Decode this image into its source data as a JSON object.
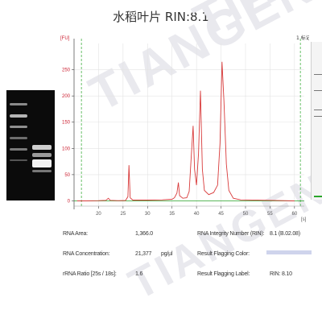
{
  "title": "水稻叶片 RIN:8.1",
  "watermark": "TIANGEN",
  "chart_data": {
    "type": "line",
    "y_unit_label": "[FU]",
    "x_unit_label": "[s]",
    "right_label": "1 标记",
    "xlim": [
      15,
      62
    ],
    "ylim": [
      -10,
      300
    ],
    "x_ticks": [
      20,
      25,
      30,
      35,
      40,
      45,
      50,
      55,
      60
    ],
    "y_ticks": [
      0,
      50,
      100,
      150,
      200,
      250
    ],
    "grid": true,
    "series": [
      {
        "points": [
          [
            15.6,
            0
          ],
          [
            17.5,
            0
          ],
          [
            20,
            0.4
          ],
          [
            21.5,
            1
          ],
          [
            22,
            5
          ],
          [
            22.4,
            1
          ],
          [
            24,
            0.5
          ],
          [
            25.5,
            0.8
          ],
          [
            26,
            8
          ],
          [
            26.2,
            68
          ],
          [
            26.45,
            6
          ],
          [
            27,
            1.5
          ],
          [
            30,
            1.5
          ],
          [
            33,
            2
          ],
          [
            35,
            3
          ],
          [
            35.5,
            6
          ],
          [
            36,
            15
          ],
          [
            36.3,
            35
          ],
          [
            36.55,
            10
          ],
          [
            37.2,
            5
          ],
          [
            38,
            6
          ],
          [
            38.5,
            18
          ],
          [
            38.9,
            80
          ],
          [
            39.3,
            143
          ],
          [
            39.6,
            60
          ],
          [
            40,
            30
          ],
          [
            40.4,
            90
          ],
          [
            40.8,
            210
          ],
          [
            41.2,
            60
          ],
          [
            41.6,
            20
          ],
          [
            42.5,
            12
          ],
          [
            43.5,
            16
          ],
          [
            44.3,
            30
          ],
          [
            44.8,
            110
          ],
          [
            45.2,
            265
          ],
          [
            45.6,
            190
          ],
          [
            46.1,
            70
          ],
          [
            46.6,
            20
          ],
          [
            47.5,
            5
          ],
          [
            49,
            2
          ],
          [
            55,
            1
          ],
          [
            60,
            0
          ]
        ]
      }
    ]
  },
  "info": {
    "rna_area_label": "RNA Area:",
    "rna_area_value": "1,366.0",
    "rna_conc_label": "RNA Concentration:",
    "rna_conc_value": "21,377",
    "rna_conc_unit": "pg/µl",
    "ratio_label": "rRNA Ratio [25s / 18s]:",
    "ratio_value": "1.6",
    "rin_label": "RNA Integrity Number (RIN):",
    "rin_value": "8.1  (B.02.08)",
    "flag_color_label": "Result Flagging Color:",
    "flag_label_label": "Result Flagging Label:",
    "flag_label_value": "RIN: 8.10"
  }
}
